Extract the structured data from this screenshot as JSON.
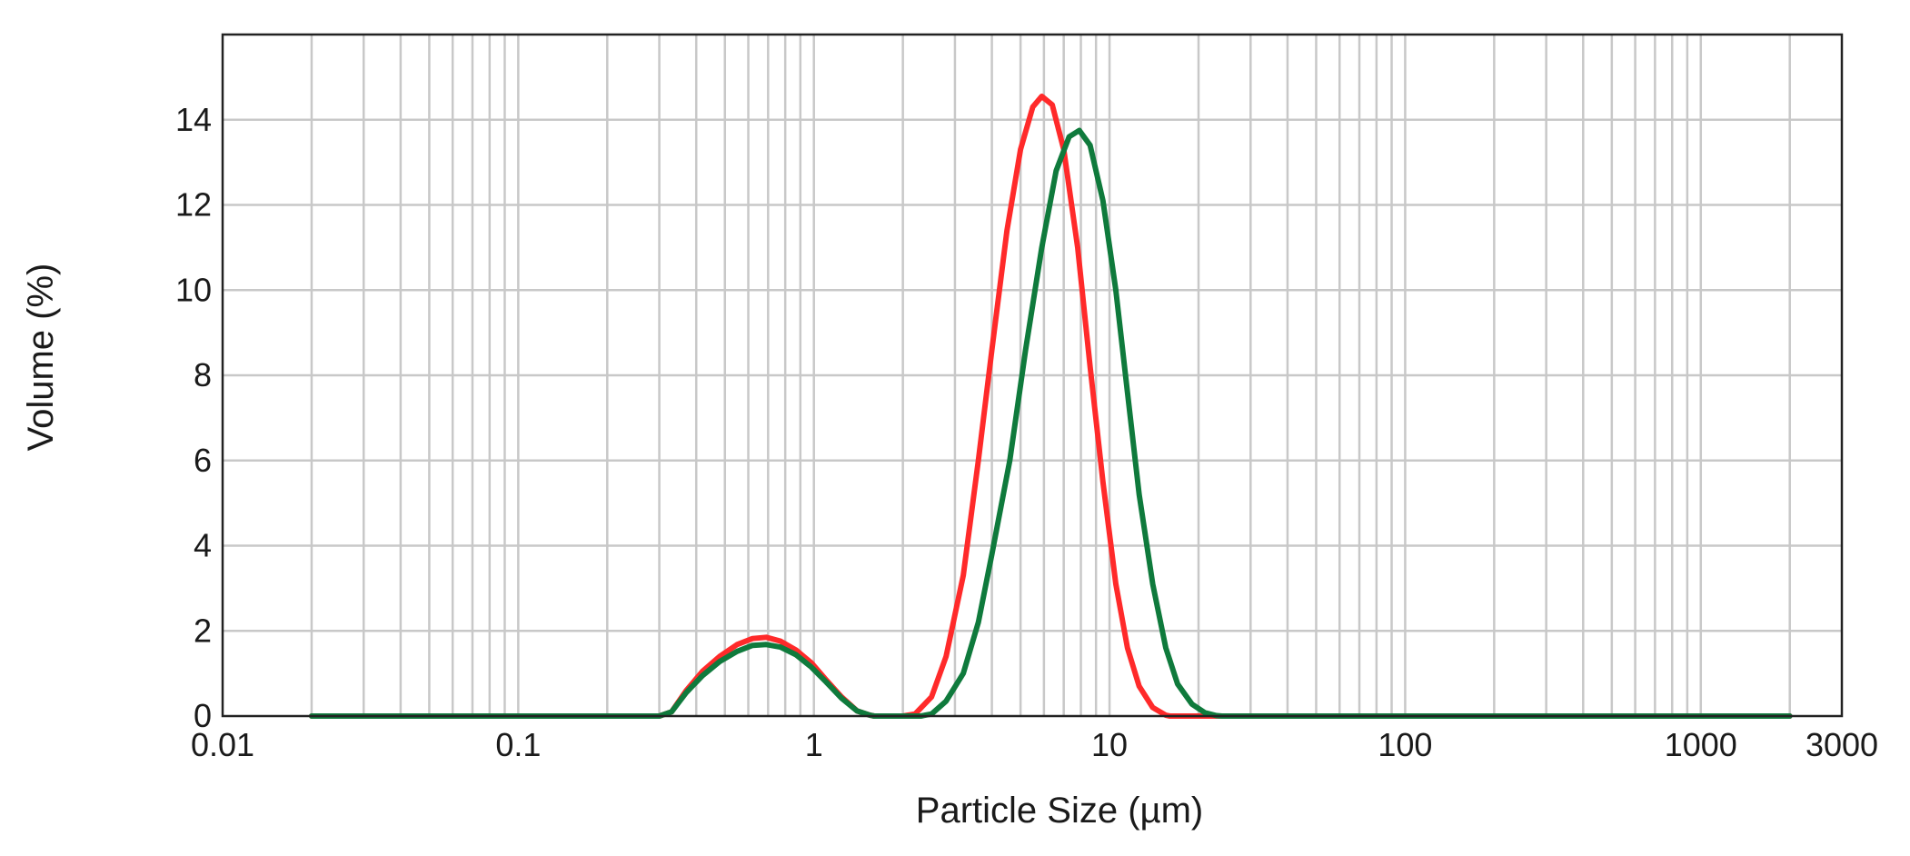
{
  "chart_data": {
    "type": "line",
    "title": "",
    "xlabel": "Particle Size (µm)",
    "ylabel": "Volume (%)",
    "x_scale": "log",
    "xlim": [
      0.01,
      3000
    ],
    "ylim": [
      0,
      16
    ],
    "grid": true,
    "x_ticks": [
      {
        "value": 0.01,
        "label": "0.01"
      },
      {
        "value": 0.1,
        "label": "0.1"
      },
      {
        "value": 1,
        "label": "1"
      },
      {
        "value": 10,
        "label": "10"
      },
      {
        "value": 100,
        "label": "100"
      },
      {
        "value": 1000,
        "label": "1000"
      },
      {
        "value": 3000,
        "label": "3000"
      }
    ],
    "y_ticks": [
      {
        "value": 0,
        "label": "0"
      },
      {
        "value": 2,
        "label": "2"
      },
      {
        "value": 4,
        "label": "4"
      },
      {
        "value": 6,
        "label": "6"
      },
      {
        "value": 8,
        "label": "8"
      },
      {
        "value": 10,
        "label": "10"
      },
      {
        "value": 12,
        "label": "12"
      },
      {
        "value": 14,
        "label": "14"
      }
    ],
    "series": [
      {
        "color": "#ff2a2a",
        "points": [
          [
            0.02,
            0
          ],
          [
            0.1,
            0
          ],
          [
            0.3,
            0
          ],
          [
            0.33,
            0.1
          ],
          [
            0.37,
            0.6
          ],
          [
            0.42,
            1.05
          ],
          [
            0.48,
            1.4
          ],
          [
            0.55,
            1.68
          ],
          [
            0.62,
            1.82
          ],
          [
            0.69,
            1.85
          ],
          [
            0.77,
            1.76
          ],
          [
            0.87,
            1.55
          ],
          [
            0.98,
            1.25
          ],
          [
            1.1,
            0.85
          ],
          [
            1.24,
            0.45
          ],
          [
            1.4,
            0.12
          ],
          [
            1.55,
            0.02
          ],
          [
            1.6,
            0
          ],
          [
            2.0,
            0
          ],
          [
            2.2,
            0.05
          ],
          [
            2.5,
            0.45
          ],
          [
            2.8,
            1.4
          ],
          [
            3.2,
            3.3
          ],
          [
            3.6,
            6.0
          ],
          [
            4.0,
            8.6
          ],
          [
            4.5,
            11.4
          ],
          [
            5.0,
            13.3
          ],
          [
            5.5,
            14.3
          ],
          [
            5.9,
            14.55
          ],
          [
            6.4,
            14.35
          ],
          [
            7.0,
            13.3
          ],
          [
            7.8,
            11.0
          ],
          [
            8.6,
            8.2
          ],
          [
            9.5,
            5.5
          ],
          [
            10.5,
            3.1
          ],
          [
            11.5,
            1.6
          ],
          [
            12.6,
            0.7
          ],
          [
            14.0,
            0.2
          ],
          [
            15.5,
            0.02
          ],
          [
            16,
            0
          ],
          [
            100,
            0
          ],
          [
            2000,
            0
          ]
        ]
      },
      {
        "color": "#0f7a3c",
        "points": [
          [
            0.02,
            0
          ],
          [
            0.1,
            0
          ],
          [
            0.3,
            0
          ],
          [
            0.33,
            0.1
          ],
          [
            0.37,
            0.55
          ],
          [
            0.42,
            0.95
          ],
          [
            0.48,
            1.28
          ],
          [
            0.55,
            1.52
          ],
          [
            0.62,
            1.66
          ],
          [
            0.69,
            1.68
          ],
          [
            0.77,
            1.62
          ],
          [
            0.87,
            1.44
          ],
          [
            0.98,
            1.15
          ],
          [
            1.1,
            0.8
          ],
          [
            1.24,
            0.42
          ],
          [
            1.4,
            0.12
          ],
          [
            1.55,
            0.02
          ],
          [
            1.6,
            0
          ],
          [
            2.3,
            0
          ],
          [
            2.5,
            0.05
          ],
          [
            2.8,
            0.35
          ],
          [
            3.2,
            1.0
          ],
          [
            3.6,
            2.2
          ],
          [
            4.0,
            3.8
          ],
          [
            4.6,
            6.0
          ],
          [
            5.2,
            8.6
          ],
          [
            5.9,
            11.0
          ],
          [
            6.6,
            12.8
          ],
          [
            7.3,
            13.6
          ],
          [
            7.9,
            13.75
          ],
          [
            8.6,
            13.4
          ],
          [
            9.5,
            12.1
          ],
          [
            10.5,
            10.0
          ],
          [
            11.5,
            7.6
          ],
          [
            12.6,
            5.2
          ],
          [
            14.0,
            3.1
          ],
          [
            15.5,
            1.6
          ],
          [
            17.0,
            0.75
          ],
          [
            19.0,
            0.28
          ],
          [
            21.0,
            0.08
          ],
          [
            23.0,
            0.01
          ],
          [
            24,
            0
          ],
          [
            100,
            0
          ],
          [
            2000,
            0
          ]
        ]
      }
    ]
  }
}
